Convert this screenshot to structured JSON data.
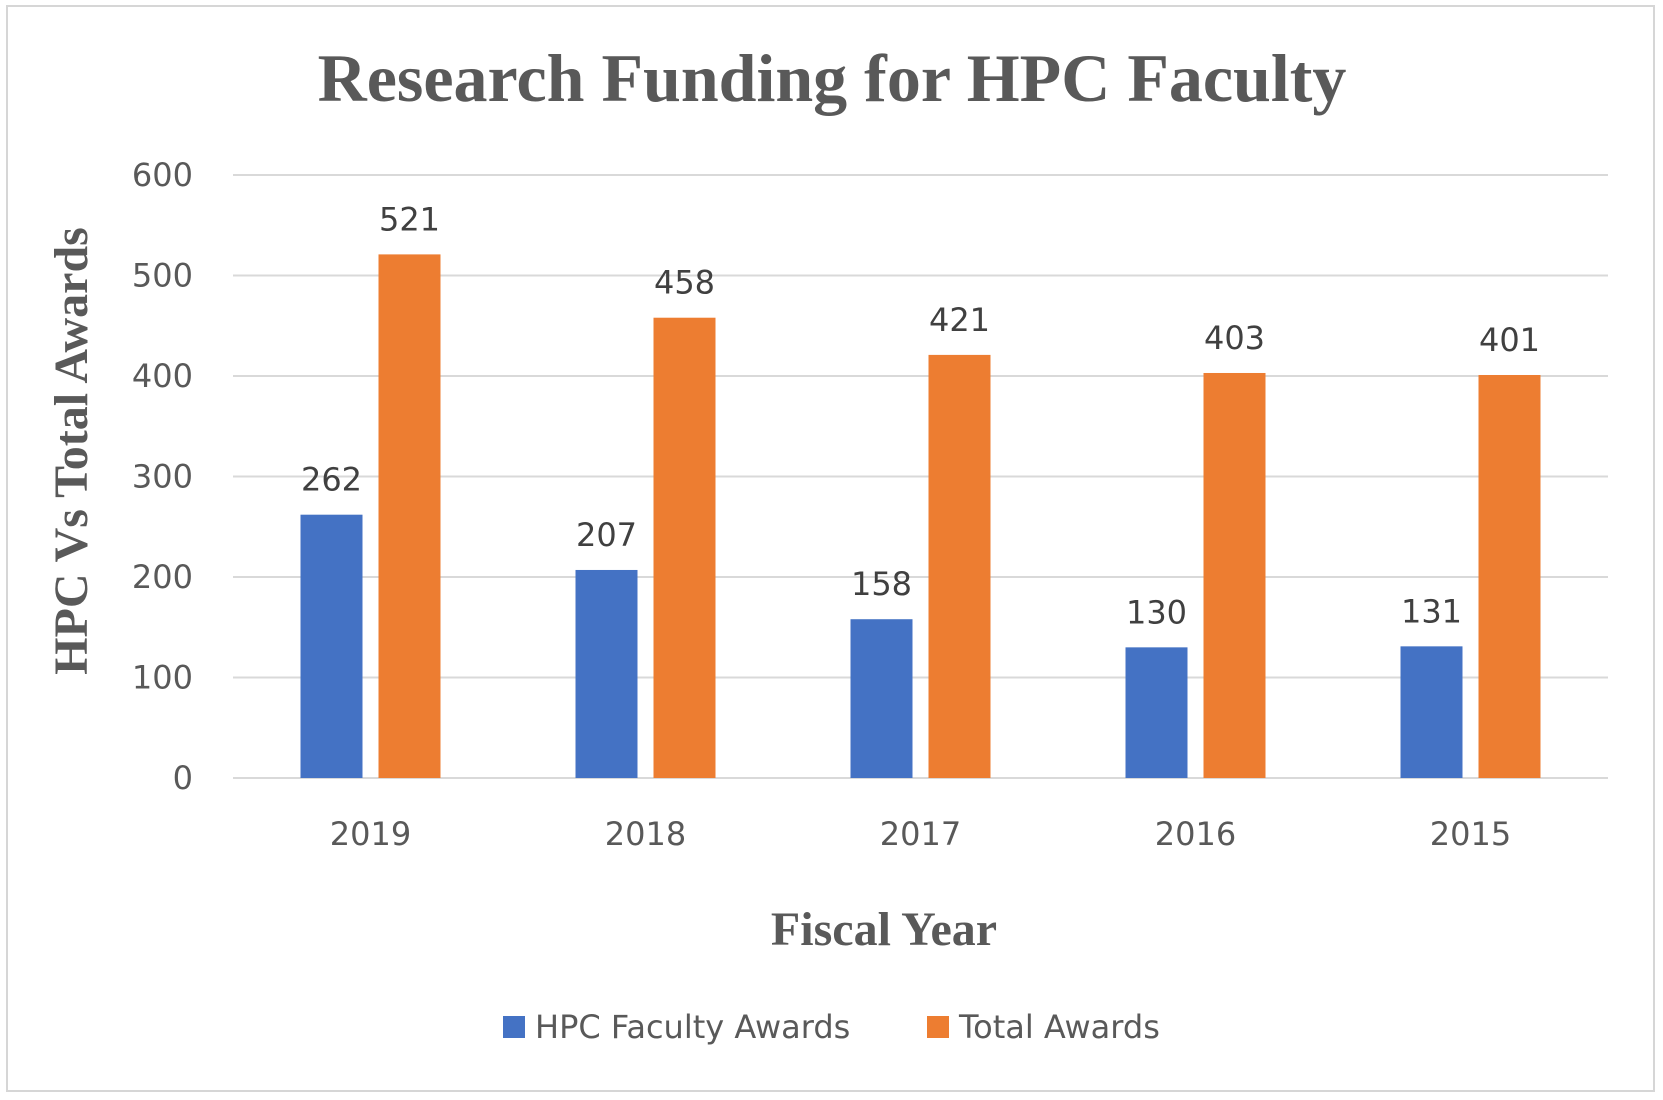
{
  "chart_data": {
    "type": "bar",
    "title": "Research Funding for HPC Faculty",
    "xlabel": "Fiscal Year",
    "ylabel": "HPC Vs Total Awards",
    "categories": [
      "2019",
      "2018",
      "2017",
      "2016",
      "2015"
    ],
    "series": [
      {
        "name": "HPC Faculty Awards",
        "values": [
          262,
          207,
          158,
          130,
          131
        ],
        "color": "#4472C4"
      },
      {
        "name": "Total Awards",
        "values": [
          521,
          458,
          421,
          403,
          401
        ],
        "color": "#ED7D31"
      }
    ],
    "ylim": [
      0,
      600
    ],
    "yticks": [
      0,
      100,
      200,
      300,
      400,
      500,
      600
    ],
    "grid": true,
    "legend": "bottom"
  }
}
